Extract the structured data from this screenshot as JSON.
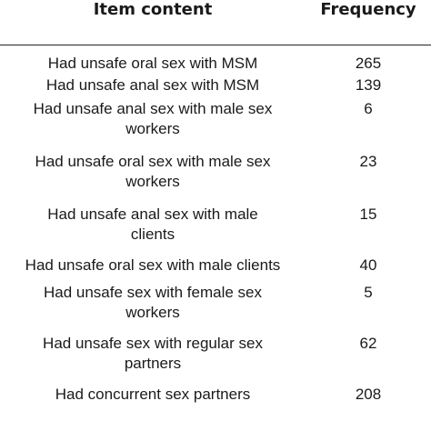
{
  "table": {
    "header": {
      "item": "Item content",
      "frequency": "Frequency"
    },
    "rows": [
      {
        "item": "Had unsafe oral sex with MSM",
        "frequency": "265"
      },
      {
        "item": "Had unsafe anal sex with MSM",
        "frequency": "139"
      },
      {
        "item": "Had unsafe anal sex with male sex\nworkers",
        "frequency": "6"
      },
      {
        "item": "Had unsafe oral sex with male sex\nworkers",
        "frequency": "23"
      },
      {
        "item": "Had unsafe anal sex with male\nclients",
        "frequency": "15"
      },
      {
        "item": "Had unsafe oral sex with male clients",
        "frequency": "40"
      },
      {
        "item": "Had unsafe sex with female sex\nworkers",
        "frequency": "5"
      },
      {
        "item": "Had unsafe sex with regular sex\npartners",
        "frequency": "62"
      },
      {
        "item": "Had concurrent sex partners",
        "frequency": "208"
      }
    ]
  }
}
